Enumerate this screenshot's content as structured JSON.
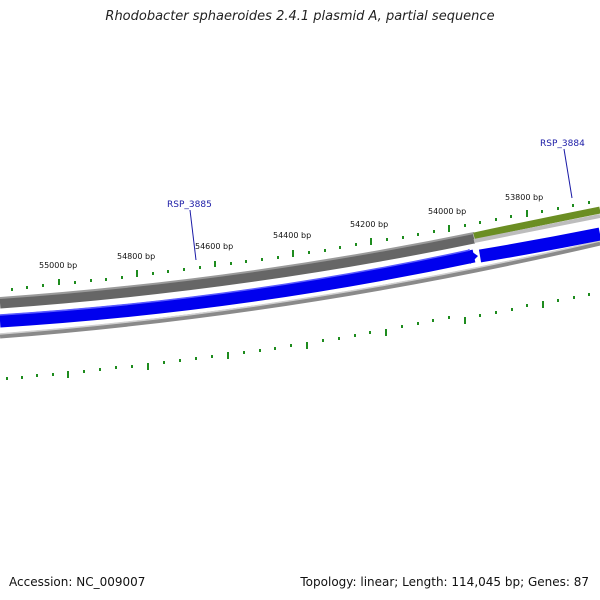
{
  "title": "Rhodobacter sphaeroides 2.4.1 plasmid A, partial sequence",
  "footer": {
    "accession": "Accession: NC_009007",
    "summary": "Topology: linear; Length: 114,045 bp; Genes: 87"
  },
  "map": {
    "tick_labels": [
      "55000 bp",
      "54800 bp",
      "54600 bp",
      "54400 bp",
      "54200 bp",
      "54000 bp",
      "53800 bp"
    ],
    "gene_labels": [
      "RSP_3885",
      "RSP_3884"
    ],
    "colors": {
      "tick_green": "#1e8c1e",
      "backbone_gray": "#6e6e6e",
      "light_gray": "#c8c8c8",
      "cds_blue": "#0000ee",
      "gene_olive": "#6b8e23",
      "label_blue": "#1a1aa6"
    }
  }
}
